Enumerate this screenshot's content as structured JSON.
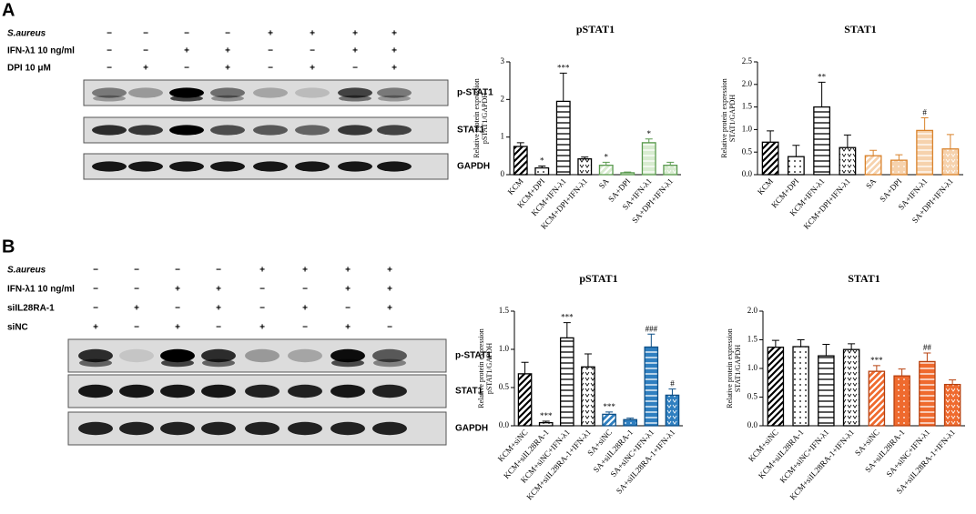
{
  "panels": [
    {
      "letter": "A",
      "treatments": [
        {
          "label": "S.aureus",
          "marks": [
            "−",
            "−",
            "−",
            "−",
            "+",
            "+",
            "+",
            "+"
          ]
        },
        {
          "label": "IFN-λ1 10 ng/ml",
          "marks": [
            "−",
            "−",
            "+",
            "+",
            "−",
            "−",
            "+",
            "+"
          ]
        },
        {
          "label": "DPI 10 μM",
          "marks": [
            "−",
            "+",
            "−",
            "+",
            "−",
            "+",
            "−",
            "+"
          ]
        }
      ],
      "blots": [
        "p-STAT1",
        "STAT1",
        "GAPDH"
      ]
    },
    {
      "letter": "B",
      "treatments": [
        {
          "label": "S.aureus",
          "marks": [
            "−",
            "−",
            "−",
            "−",
            "+",
            "+",
            "+",
            "+"
          ]
        },
        {
          "label": "IFN-λ1 10 ng/ml",
          "marks": [
            "−",
            "−",
            "+",
            "+",
            "−",
            "−",
            "+",
            "+"
          ]
        },
        {
          "label": "siIL28RA-1",
          "marks": [
            "−",
            "+",
            "−",
            "+",
            "−",
            "+",
            "−",
            "+"
          ]
        },
        {
          "label": "siNC",
          "marks": [
            "+",
            "−",
            "+",
            "−",
            "+",
            "−",
            "+",
            "−"
          ]
        }
      ],
      "blots": [
        "p-STAT1",
        "STAT1",
        "GAPDH"
      ]
    }
  ],
  "chart_data": [
    {
      "type": "bar",
      "title": "pSTAT1",
      "ylabel": "Relative protein expression",
      "ysublabel": "pSTAT1/GAPDH",
      "categories": [
        "KCM",
        "KCM+DPI",
        "KCM+IFN-λ1",
        "KCM+DPI+IFN-λ1",
        "SA",
        "SA+DPI",
        "SA+IFN-λ1",
        "SA+DPI+IFN-λ1"
      ],
      "values": [
        0.75,
        0.18,
        1.95,
        0.42,
        0.25,
        0.05,
        0.85,
        0.25
      ],
      "errors": [
        0.1,
        0.05,
        0.75,
        0.05,
        0.08,
        0.02,
        0.1,
        0.08
      ],
      "annotations": [
        null,
        "*",
        "***",
        null,
        "*",
        null,
        "*",
        null
      ],
      "colors": [
        "#000000",
        "#000000",
        "#000000",
        "#000000",
        "#5a9a4f",
        "#5a9a4f",
        "#5a9a4f",
        "#5a9a4f"
      ],
      "fills": [
        "#ffffff",
        "#ffffff",
        "#ffffff",
        "#ffffff",
        "#d8ecd0",
        "#d8ecd0",
        "#d8ecd0",
        "#d8ecd0"
      ],
      "patterns": [
        "diag",
        "dots",
        "hlines",
        "vees",
        "diag",
        "dots",
        "hlines",
        "vees"
      ],
      "ylim": [
        0,
        3
      ],
      "yticks": [
        0,
        1,
        2,
        3
      ]
    },
    {
      "type": "bar",
      "title": "STAT1",
      "ylabel": "Relative protein expression",
      "ysublabel": "STAT1/GAPDH",
      "categories": [
        "KCM",
        "KCM+DPI",
        "KCM+IFN-λ1",
        "KCM+DPI+IFN-λ1",
        "SA",
        "SA+DPI",
        "SA+IFN-λ1",
        "SA+DPI+IFN-λ1"
      ],
      "values": [
        0.72,
        0.4,
        1.5,
        0.6,
        0.42,
        0.32,
        0.98,
        0.57
      ],
      "errors": [
        0.25,
        0.25,
        0.55,
        0.28,
        0.12,
        0.12,
        0.28,
        0.32
      ],
      "annotations": [
        null,
        null,
        "**",
        null,
        null,
        null,
        "#",
        null
      ],
      "colors": [
        "#000000",
        "#000000",
        "#000000",
        "#000000",
        "#d9822b",
        "#d9822b",
        "#d9822b",
        "#d9822b"
      ],
      "fills": [
        "#ffffff",
        "#ffffff",
        "#ffffff",
        "#ffffff",
        "#f6d2ad",
        "#f6d2ad",
        "#f6d2ad",
        "#f6d2ad"
      ],
      "patterns": [
        "diag",
        "dots",
        "hlines",
        "vees",
        "diag",
        "dots",
        "hlines",
        "vees"
      ],
      "ylim": [
        0,
        2.5
      ],
      "yticks": [
        {
          "value": 0,
          "label": "0.0"
        },
        0.5,
        {
          "value": 1,
          "label": "1.0"
        },
        1.5,
        {
          "value": 2,
          "label": "2.0"
        },
        2.5
      ]
    },
    {
      "type": "bar",
      "title": "pSTAT1",
      "ylabel": "Relative protein expression",
      "ysublabel": "pSTAT1/GAPDH",
      "categories": [
        "KCM+siNC",
        "KCM+siIL28RA-1",
        "KCM+siNC+IFN-λ1",
        "KCM+siIL28RA-1+IFN-λ1",
        "SA+siNC",
        "SA+siIL28RA-1",
        "SA+siNC+IFN-λ1",
        "SA+siIL28RA-1+IFN-λ1"
      ],
      "values": [
        0.68,
        0.04,
        1.15,
        0.77,
        0.15,
        0.08,
        1.03,
        0.4
      ],
      "errors": [
        0.15,
        0.02,
        0.2,
        0.17,
        0.03,
        0.02,
        0.17,
        0.08
      ],
      "annotations": [
        null,
        "***",
        "***",
        null,
        "***",
        null,
        "###",
        "#"
      ],
      "colors": [
        "#000000",
        "#000000",
        "#000000",
        "#000000",
        "#0d4f86",
        "#0d4f86",
        "#0d4f86",
        "#0d4f86"
      ],
      "fills": [
        "#ffffff",
        "#ffffff",
        "#ffffff",
        "#ffffff",
        "#2f7fc0",
        "#2f7fc0",
        "#2f7fc0",
        "#2f7fc0"
      ],
      "patterns": [
        "diag",
        "dots",
        "hlines",
        "vees",
        "diag",
        "dots",
        "hlines",
        "vees"
      ],
      "ylim": [
        0,
        1.5
      ],
      "yticks": [
        {
          "value": 0,
          "label": "0.0"
        },
        0.5,
        {
          "value": 1,
          "label": "1.0"
        },
        1.5
      ]
    },
    {
      "type": "bar",
      "title": "STAT1",
      "ylabel": "Relative protein expression",
      "ysublabel": "STAT1/GAPDH",
      "categories": [
        "KCM+siNC",
        "KCM+siIL28RA-1",
        "KCM+siNC+IFN-λ1",
        "KCM+siIL28RA-1+IFN-λ1",
        "SA+siNC",
        "SA+siIL28RA-1",
        "SA+siNC+IFN-λ1",
        "SA+siIL28RA-1+IFN-λ1"
      ],
      "values": [
        1.37,
        1.38,
        1.22,
        1.33,
        0.95,
        0.87,
        1.12,
        0.72
      ],
      "errors": [
        0.12,
        0.12,
        0.2,
        0.1,
        0.1,
        0.12,
        0.15,
        0.08
      ],
      "annotations": [
        null,
        null,
        null,
        null,
        "***",
        null,
        "##",
        null
      ],
      "colors": [
        "#000000",
        "#000000",
        "#000000",
        "#000000",
        "#b8410f",
        "#b8410f",
        "#b8410f",
        "#b8410f"
      ],
      "fills": [
        "#ffffff",
        "#ffffff",
        "#ffffff",
        "#ffffff",
        "#ef6a2e",
        "#ef6a2e",
        "#ef6a2e",
        "#ef6a2e"
      ],
      "patterns": [
        "diag",
        "dots",
        "hlines",
        "vees",
        "diag",
        "dots",
        "hlines",
        "vees"
      ],
      "ylim": [
        0,
        2
      ],
      "yticks": [
        {
          "value": 0,
          "label": "0.0"
        },
        0.5,
        {
          "value": 1,
          "label": "1.0"
        },
        1.5,
        {
          "value": 2,
          "label": "2.0"
        }
      ]
    }
  ]
}
